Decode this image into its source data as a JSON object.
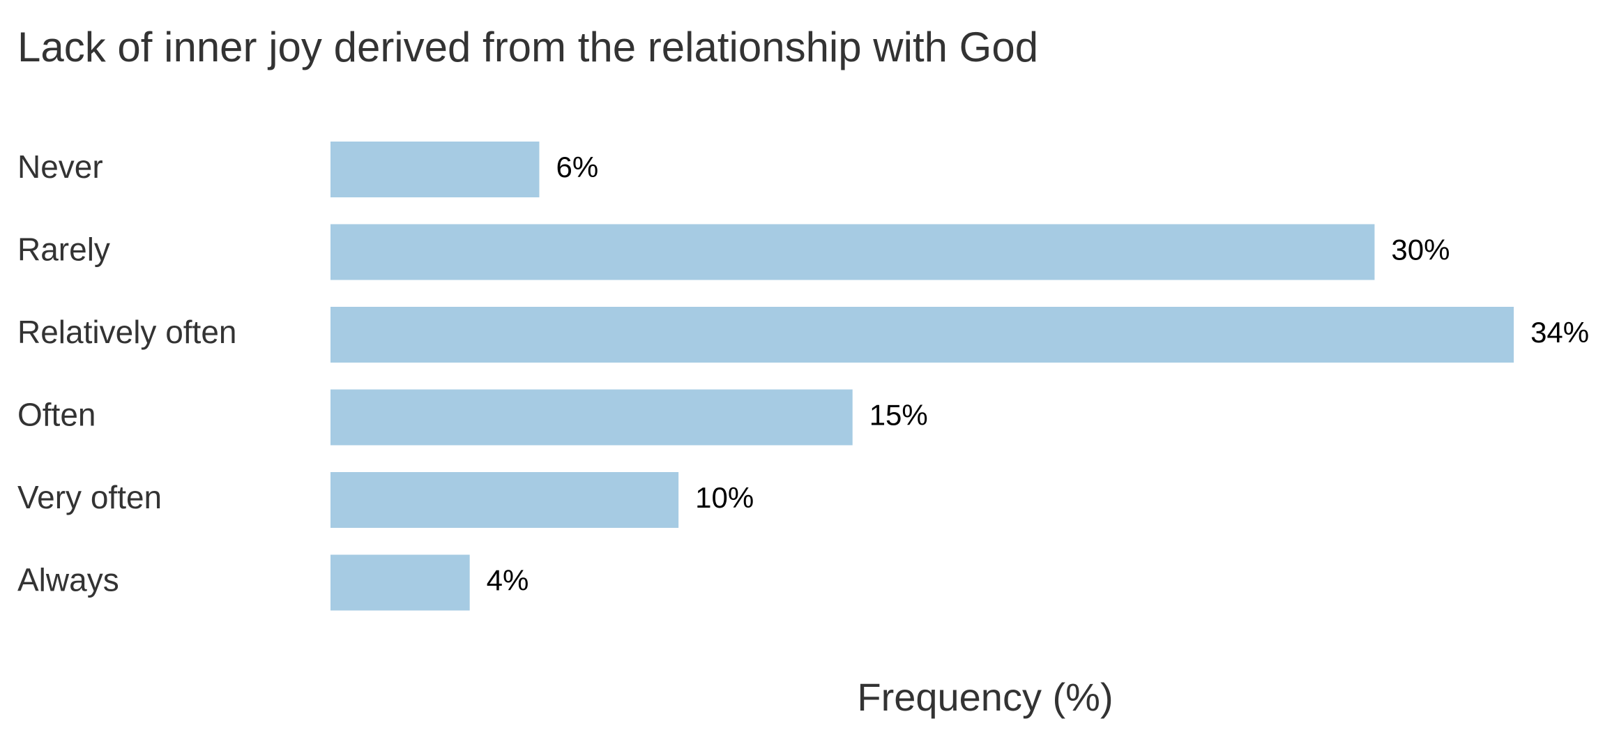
{
  "chart_data": {
    "type": "bar",
    "orientation": "horizontal",
    "title": "Lack of inner joy derived from the relationship with God",
    "categories": [
      "Never",
      "Rarely",
      "Relatively often",
      "Often",
      "Very often",
      "Always"
    ],
    "values": [
      6,
      30,
      34,
      15,
      10,
      4
    ],
    "value_labels": [
      "6%",
      "30%",
      "34%",
      "15%",
      "10%",
      "4%"
    ],
    "color": "#a6cbe3",
    "xlabel": "Frequency (%)",
    "xlim": [
      0,
      35
    ]
  }
}
